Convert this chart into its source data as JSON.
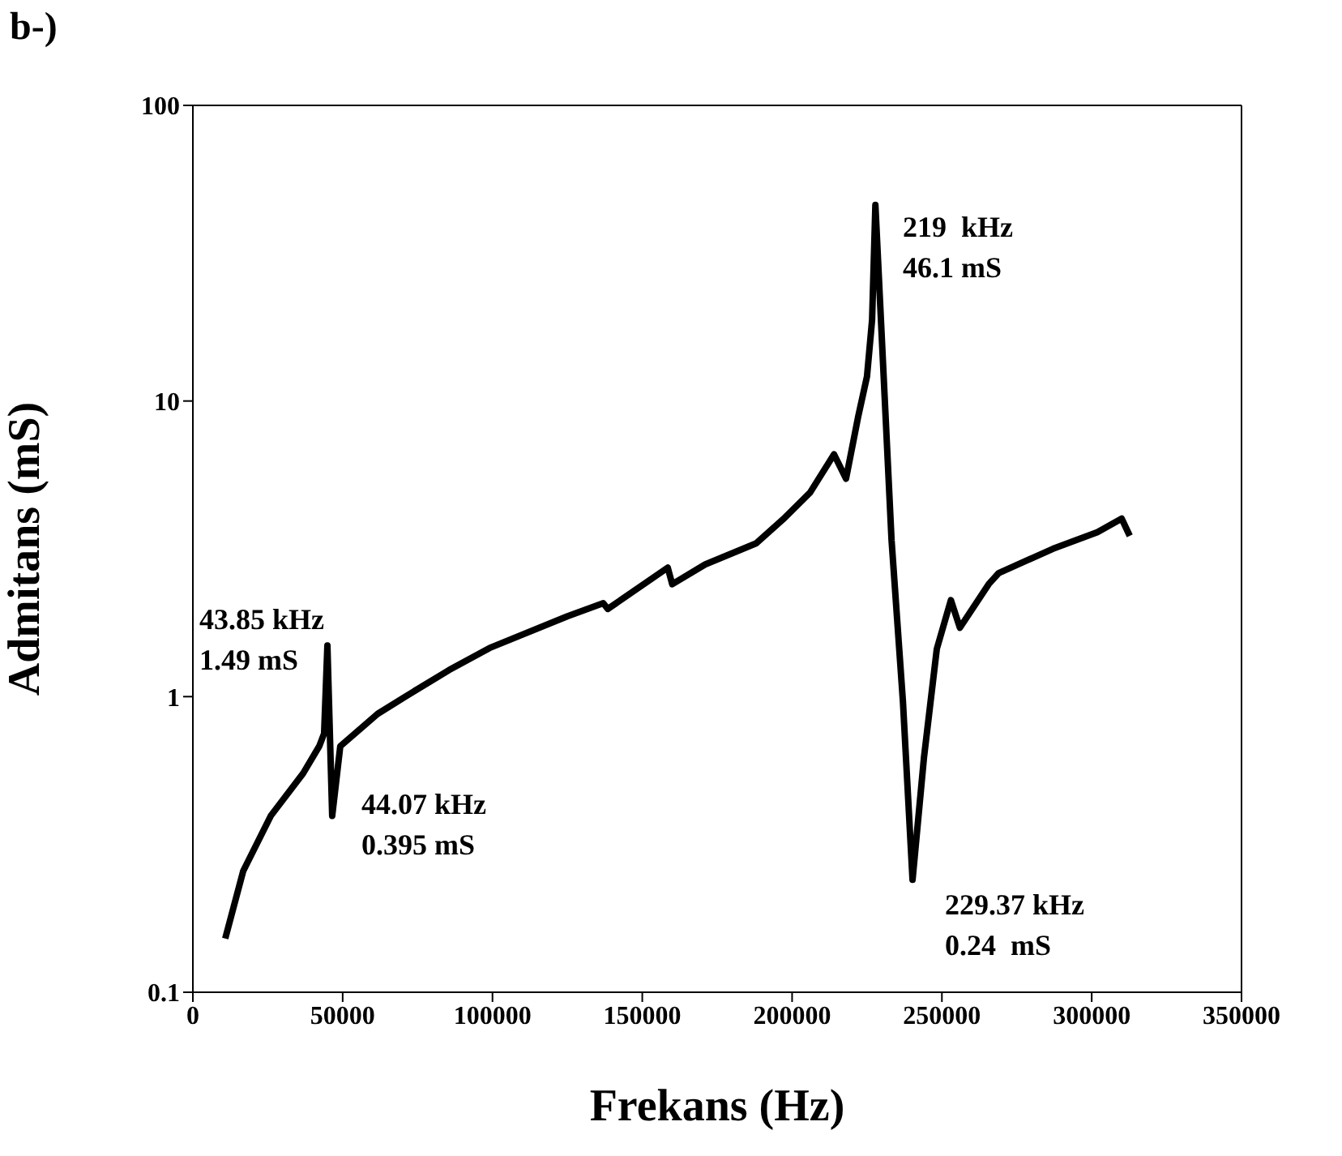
{
  "chart_data": {
    "type": "line",
    "title": "b-)",
    "xlabel": "Frekans (Hz)",
    "ylabel": "Admitans (mS)",
    "xlim": [
      0,
      350000
    ],
    "xticks": [
      0,
      50000,
      100000,
      150000,
      200000,
      250000,
      300000,
      350000
    ],
    "ylim": [
      0.1,
      100
    ],
    "yticks": [
      0.1,
      1,
      10,
      100
    ],
    "log": "y",
    "marker": "none",
    "line_style": "solid",
    "annotations": [
      "43.85 kHz\n1.49 mS",
      "44.07 kHz\n0.395 mS",
      "219  kHz\n46.1 mS",
      "229.37 kHz\n0.24  mS"
    ],
    "series": [
      {
        "color": "#000000",
        "x": [
          10800,
          16800,
          26000,
          36800,
          42200,
          43800,
          44900,
          46500,
          49200,
          61700,
          70900,
          85500,
          99000,
          125000,
          137000,
          138500,
          158500,
          160000,
          171000,
          188000,
          197000,
          206000,
          214000,
          218000,
          222000,
          225000,
          226700,
          227800,
          233200,
          237000,
          240200,
          244000,
          248300,
          253000,
          256000,
          265600,
          269000,
          287000,
          301900,
          310000,
          312700
        ],
        "values": [
          0.152,
          0.257,
          0.395,
          0.55,
          0.68,
          0.75,
          1.49,
          0.395,
          0.68,
          0.875,
          1.0,
          1.23,
          1.46,
          1.87,
          2.07,
          1.98,
          2.73,
          2.4,
          2.8,
          3.3,
          3.98,
          4.9,
          6.6,
          5.46,
          8.8,
          12.1,
          18.8,
          46.1,
          3.38,
          0.96,
          0.24,
          0.62,
          1.45,
          2.12,
          1.71,
          2.4,
          2.62,
          3.16,
          3.6,
          4.0,
          3.5
        ]
      }
    ]
  }
}
